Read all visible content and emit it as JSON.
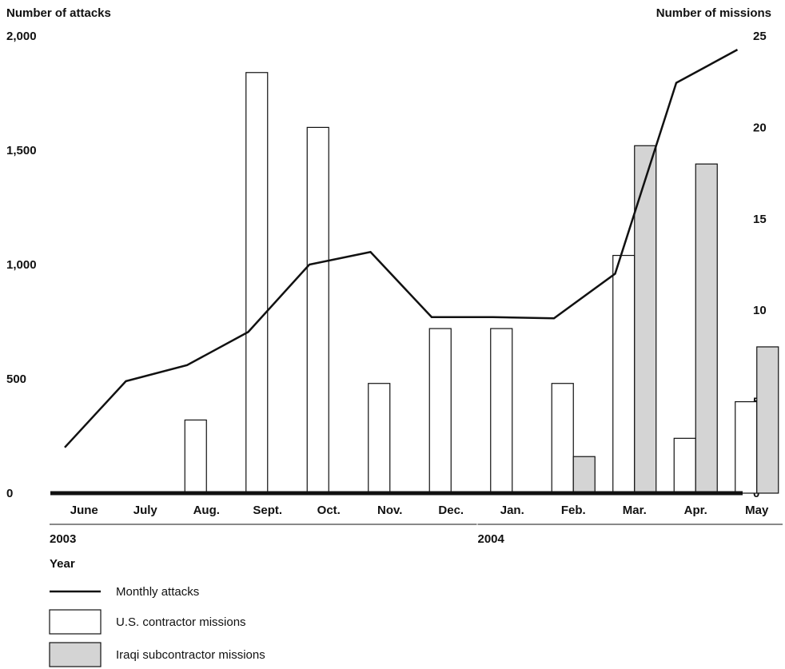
{
  "chart_data": {
    "type": "bar",
    "left_axis": {
      "title": "Number of attacks",
      "ticks": [
        "0",
        "500",
        "1,000",
        "1,500",
        "2,000"
      ],
      "range": [
        0,
        2000
      ]
    },
    "right_axis": {
      "title": "Number of missions",
      "ticks": [
        "0",
        "5",
        "10",
        "15",
        "20",
        "25"
      ],
      "range": [
        0,
        25
      ]
    },
    "categories": [
      "June",
      "July",
      "Aug.",
      "Sept.",
      "Oct.",
      "Nov.",
      "Dec.",
      "Jan.",
      "Feb.",
      "Mar.",
      "Apr.",
      "May"
    ],
    "year_groups": [
      {
        "label": "2003",
        "from": 0,
        "to": 6
      },
      {
        "label": "2004",
        "from": 7,
        "to": 11
      }
    ],
    "x_group_label": "Year",
    "series": [
      {
        "name": "Monthly attacks",
        "type": "line",
        "axis": "left",
        "values": [
          200,
          490,
          560,
          705,
          1000,
          1055,
          770,
          770,
          765,
          960,
          1795,
          1940
        ]
      },
      {
        "name": "U.S. contractor missions",
        "type": "bar",
        "axis": "right",
        "color": "#ffffff",
        "values": [
          0,
          0,
          4,
          23,
          20,
          6,
          9,
          9,
          6,
          13,
          3,
          5
        ]
      },
      {
        "name": "Iraqi subcontractor missions",
        "type": "bar",
        "axis": "right",
        "color": "#d4d4d4",
        "values": [
          0,
          0,
          0,
          0,
          0,
          0,
          0,
          0,
          2,
          19,
          18,
          8
        ]
      }
    ],
    "legend_position": "bottom-left",
    "grid": false
  }
}
